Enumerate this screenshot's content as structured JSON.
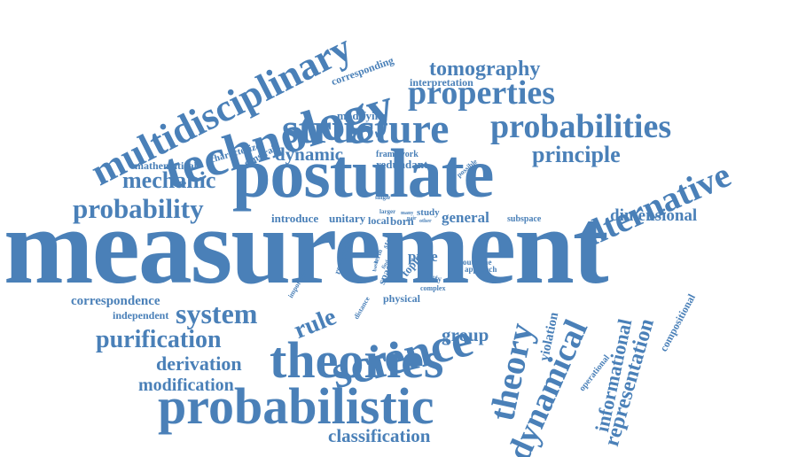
{
  "colors": {
    "word": "#4a80b8",
    "background": "#ffffff"
  },
  "words": {
    "measurement": "measurement",
    "postulate": "postulate",
    "technology": "technology",
    "multidisciplinary": "multidisciplinary",
    "structure": "structure",
    "probabilities": "probabilities",
    "properties": "properties",
    "tomography": "tomography",
    "principle": "principle",
    "alternative": "alternative",
    "dimensional": "dimensional",
    "probability": "probability",
    "mechanic": "mechanic",
    "dynamic": "dynamic",
    "mathematical": "mathematical",
    "science": "science",
    "theories": "theories",
    "probabilistic": "probabilistic",
    "theory": "theory",
    "dynamical": "dynamical",
    "informational": "informational",
    "representation": "representation",
    "compositional": "compositional",
    "operational": "operational",
    "violation": "violation",
    "classification": "classification",
    "modification": "modification",
    "derivation": "derivation",
    "purification": "purification",
    "system": "system",
    "rule": "rule",
    "group": "group",
    "correspondence": "correspondence",
    "independent": "independent",
    "general": "general",
    "modifying": "modifying",
    "interpretation": "interpretation",
    "corresponding": "corresponding",
    "characterize": "characterize",
    "constrain": "constrain",
    "framework": "framework",
    "redundant": "redundant",
    "possible": "possible",
    "introduce": "introduce",
    "unitary": "unitary",
    "single": "single",
    "larger": "larger",
    "many": "many",
    "study": "study",
    "local": "local",
    "born": "born",
    "pair": "pair",
    "other": "other",
    "subspace": "subspace",
    "pure": "pure",
    "classify": "classify",
    "complex": "complex",
    "physical": "physical",
    "outcome": "outcome",
    "approach": "approach",
    "topic": "topic",
    "space": "space",
    "state": "state",
    "term": "term",
    "find": "find",
    "basic": "basic",
    "reversible": "reversible",
    "important": "important",
    "distance": "distance",
    "l": "l"
  }
}
